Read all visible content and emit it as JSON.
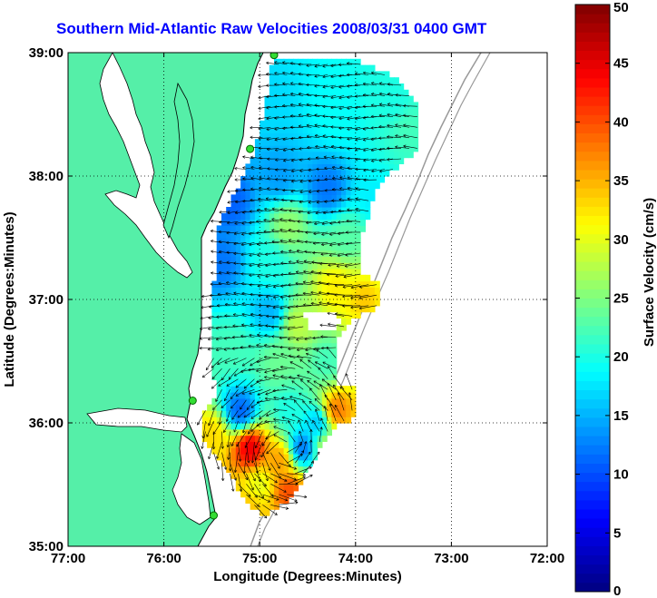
{
  "chart_data": {
    "type": "heatmap",
    "title": "Southern Mid-Atlantic Raw Velocities 2008/03/31 0400 GMT",
    "xlabel": "Longitude (Degrees:Minutes)",
    "ylabel": "Latitude (Degrees:Minutes)",
    "xlim": [
      -77,
      -72
    ],
    "ylim": [
      35,
      39
    ],
    "x_ticks": [
      -77,
      -76,
      -75,
      -74,
      -73,
      -72
    ],
    "x_tick_labels": [
      "77:00",
      "76:00",
      "75:00",
      "74:00",
      "73:00",
      "72:00"
    ],
    "y_ticks": [
      35,
      36,
      37,
      38,
      39
    ],
    "y_tick_labels": [
      "35:00",
      "36:00",
      "37:00",
      "38:00",
      "39:00"
    ],
    "grid": true,
    "colorbar": {
      "label": "Surface Velocity (cm/s)",
      "range": [
        0,
        50
      ],
      "ticks": [
        0,
        5,
        10,
        15,
        20,
        25,
        30,
        35,
        40,
        45,
        50
      ],
      "tick_labels": [
        "0",
        "5",
        "10",
        "15",
        "20",
        "25",
        "30",
        "35",
        "40",
        "45",
        "50"
      ]
    },
    "velocity_regions": [
      {
        "lon": -74.9,
        "lat": 38.6,
        "speed": 17
      },
      {
        "lon": -74.2,
        "lat": 38.5,
        "speed": 19
      },
      {
        "lon": -73.6,
        "lat": 38.6,
        "speed": 20
      },
      {
        "lon": -73.45,
        "lat": 38.4,
        "speed": 22
      },
      {
        "lon": -74.8,
        "lat": 38.0,
        "speed": 14
      },
      {
        "lon": -74.3,
        "lat": 37.9,
        "speed": 12
      },
      {
        "lon": -73.8,
        "lat": 37.8,
        "speed": 18
      },
      {
        "lon": -75.3,
        "lat": 37.8,
        "speed": 11
      },
      {
        "lon": -74.7,
        "lat": 37.6,
        "speed": 26
      },
      {
        "lon": -74.1,
        "lat": 37.5,
        "speed": 23
      },
      {
        "lon": -73.7,
        "lat": 37.4,
        "speed": 24
      },
      {
        "lon": -75.4,
        "lat": 37.3,
        "speed": 12
      },
      {
        "lon": -74.9,
        "lat": 37.3,
        "speed": 20
      },
      {
        "lon": -74.2,
        "lat": 37.1,
        "speed": 32
      },
      {
        "lon": -73.9,
        "lat": 37.0,
        "speed": 34
      },
      {
        "lon": -74.9,
        "lat": 36.9,
        "speed": 15
      },
      {
        "lon": -74.6,
        "lat": 36.8,
        "speed": 28
      },
      {
        "lon": -73.8,
        "lat": 36.8,
        "speed": 30
      },
      {
        "lon": -75.3,
        "lat": 36.6,
        "speed": 22
      },
      {
        "lon": -74.8,
        "lat": 36.5,
        "speed": 24
      },
      {
        "lon": -74.3,
        "lat": 36.5,
        "speed": 22
      },
      {
        "lon": -75.2,
        "lat": 36.1,
        "speed": 11
      },
      {
        "lon": -74.7,
        "lat": 36.1,
        "speed": 20
      },
      {
        "lon": -74.4,
        "lat": 36.0,
        "speed": 16
      },
      {
        "lon": -74.2,
        "lat": 36.1,
        "speed": 38
      },
      {
        "lon": -75.5,
        "lat": 35.9,
        "speed": 33
      },
      {
        "lon": -75.1,
        "lat": 35.8,
        "speed": 45
      },
      {
        "lon": -74.8,
        "lat": 35.7,
        "speed": 36
      },
      {
        "lon": -74.55,
        "lat": 35.8,
        "speed": 12
      },
      {
        "lon": -74.3,
        "lat": 35.8,
        "speed": 28
      },
      {
        "lon": -75.0,
        "lat": 35.5,
        "speed": 30
      },
      {
        "lon": -74.7,
        "lat": 35.45,
        "speed": 40
      },
      {
        "lon": -75.1,
        "lat": 35.3,
        "speed": 34
      }
    ],
    "radar_sites": [
      {
        "lon": -74.85,
        "lat": 38.98
      },
      {
        "lon": -75.1,
        "lat": 38.22
      },
      {
        "lon": -75.7,
        "lat": 36.18
      },
      {
        "lon": -75.48,
        "lat": 35.25
      }
    ]
  },
  "colors": {
    "land": "#55efa8",
    "title": "#0000ff",
    "site_marker": "#33dd33",
    "contour": "#999999"
  }
}
